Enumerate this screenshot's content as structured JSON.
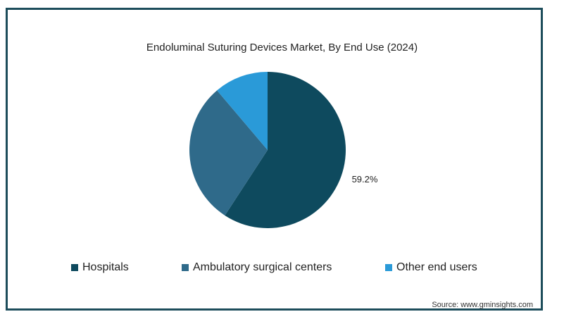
{
  "chart_data": {
    "type": "pie",
    "title": "Endoluminal Suturing Devices Market, By End Use (2024)",
    "slices": [
      {
        "name": "Hospitals",
        "value": 59.2,
        "color": "#0e4a5e",
        "label": "59.2%"
      },
      {
        "name": "Ambulatory surgical centers",
        "value": 29.6,
        "color": "#2f6a8a",
        "label": ""
      },
      {
        "name": "Other end users",
        "value": 11.2,
        "color": "#2a9ad8",
        "label": ""
      }
    ],
    "legend_placement": "bottom",
    "source": "Source: www.gminsights.com"
  }
}
